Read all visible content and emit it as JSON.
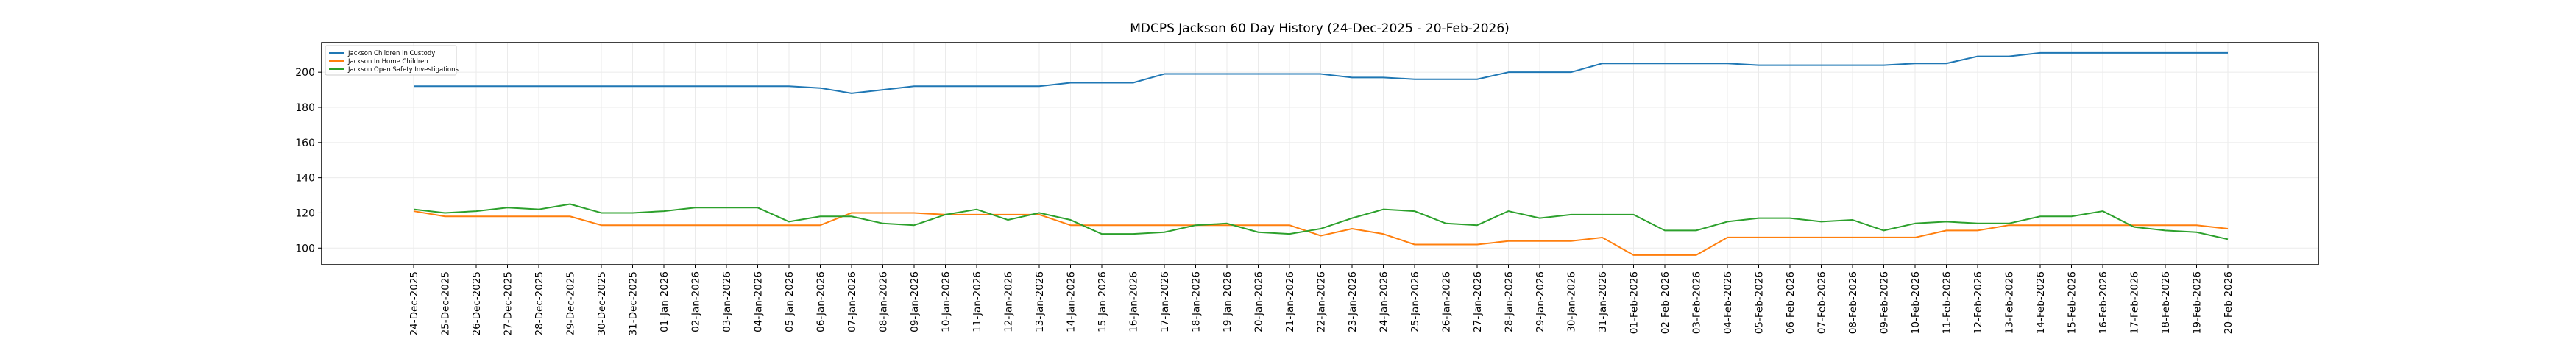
{
  "chart_data": {
    "type": "line",
    "title": "MDCPS Jackson 60 Day History (24-Dec-2025 - 20-Feb-2026)",
    "xlabel": "",
    "ylabel": "",
    "ylim": [
      90.5,
      216.8
    ],
    "yticks": [
      100,
      120,
      140,
      160,
      180,
      200
    ],
    "grid": true,
    "legend_position": "top-left",
    "categories": [
      "24-Dec-2025",
      "25-Dec-2025",
      "26-Dec-2025",
      "27-Dec-2025",
      "28-Dec-2025",
      "29-Dec-2025",
      "30-Dec-2025",
      "31-Dec-2025",
      "01-Jan-2026",
      "02-Jan-2026",
      "03-Jan-2026",
      "04-Jan-2026",
      "05-Jan-2026",
      "06-Jan-2026",
      "07-Jan-2026",
      "08-Jan-2026",
      "09-Jan-2026",
      "10-Jan-2026",
      "11-Jan-2026",
      "12-Jan-2026",
      "13-Jan-2026",
      "14-Jan-2026",
      "15-Jan-2026",
      "16-Jan-2026",
      "17-Jan-2026",
      "18-Jan-2026",
      "19-Jan-2026",
      "20-Jan-2026",
      "21-Jan-2026",
      "22-Jan-2026",
      "23-Jan-2026",
      "24-Jan-2026",
      "25-Jan-2026",
      "26-Jan-2026",
      "27-Jan-2026",
      "28-Jan-2026",
      "29-Jan-2026",
      "30-Jan-2026",
      "31-Jan-2026",
      "01-Feb-2026",
      "02-Feb-2026",
      "03-Feb-2026",
      "04-Feb-2026",
      "05-Feb-2026",
      "06-Feb-2026",
      "07-Feb-2026",
      "08-Feb-2026",
      "09-Feb-2026",
      "10-Feb-2026",
      "11-Feb-2026",
      "12-Feb-2026",
      "13-Feb-2026",
      "14-Feb-2026",
      "15-Feb-2026",
      "16-Feb-2026",
      "17-Feb-2026",
      "18-Feb-2026",
      "19-Feb-2026",
      "20-Feb-2026"
    ],
    "series": [
      {
        "name": "Jackson Children in Custody",
        "color": "#1f77b4",
        "values": [
          192,
          192,
          192,
          192,
          192,
          192,
          192,
          192,
          192,
          192,
          192,
          192,
          192,
          191,
          188,
          190,
          192,
          192,
          192,
          192,
          192,
          194,
          194,
          194,
          199,
          199,
          199,
          199,
          199,
          199,
          197,
          197,
          196,
          196,
          196,
          200,
          200,
          200,
          205,
          205,
          205,
          205,
          205,
          204,
          204,
          204,
          204,
          204,
          205,
          205,
          209,
          209,
          211,
          211,
          211,
          211,
          211,
          211,
          211
        ]
      },
      {
        "name": "Jackson In Home Children",
        "color": "#ff7f0e",
        "values": [
          121,
          118,
          118,
          118,
          118,
          118,
          113,
          113,
          113,
          113,
          113,
          113,
          113,
          113,
          120,
          120,
          120,
          119,
          119,
          119,
          119,
          113,
          113,
          113,
          113,
          113,
          113,
          113,
          113,
          107,
          111,
          108,
          102,
          102,
          102,
          104,
          104,
          104,
          106,
          96,
          96,
          96,
          106,
          106,
          106,
          106,
          106,
          106,
          106,
          110,
          110,
          113,
          113,
          113,
          113,
          113,
          113,
          113,
          111
        ]
      },
      {
        "name": "Jackson Open Safety Investigations",
        "color": "#2ca02c",
        "values": [
          122,
          120,
          121,
          123,
          122,
          125,
          120,
          120,
          121,
          123,
          123,
          123,
          115,
          118,
          118,
          114,
          113,
          119,
          122,
          116,
          120,
          116,
          108,
          108,
          109,
          113,
          114,
          109,
          108,
          111,
          117,
          122,
          121,
          114,
          113,
          121,
          117,
          119,
          119,
          119,
          110,
          110,
          115,
          117,
          117,
          115,
          116,
          110,
          114,
          115,
          114,
          114,
          118,
          118,
          121,
          112,
          110,
          109,
          105
        ]
      }
    ]
  }
}
